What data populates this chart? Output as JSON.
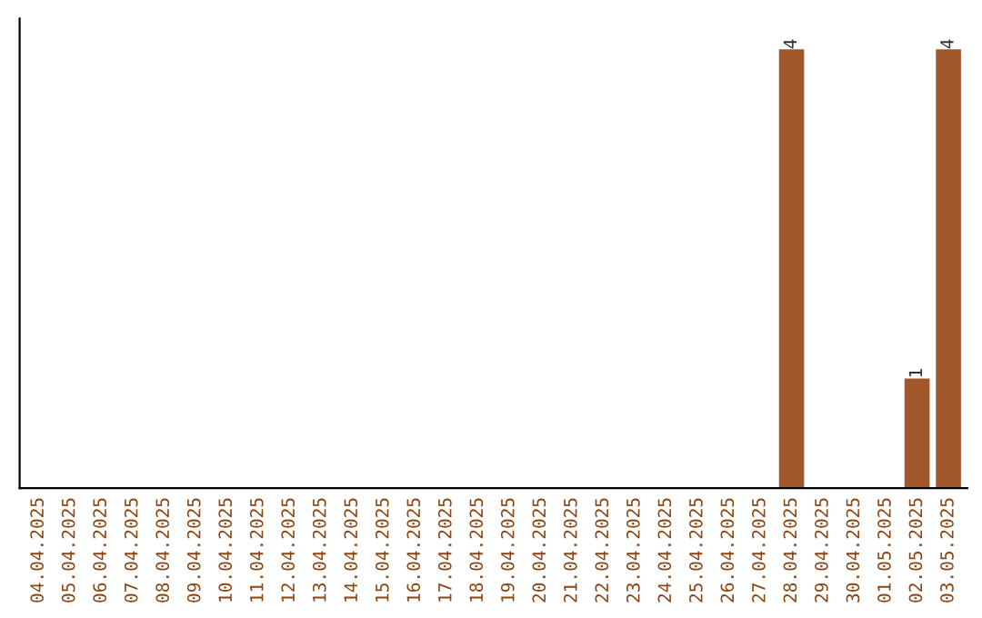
{
  "chart_data": {
    "type": "bar",
    "categories": [
      "04.04.2025",
      "05.04.2025",
      "06.04.2025",
      "07.04.2025",
      "08.04.2025",
      "09.04.2025",
      "10.04.2025",
      "11.04.2025",
      "12.04.2025",
      "13.04.2025",
      "14.04.2025",
      "15.04.2025",
      "16.04.2025",
      "17.04.2025",
      "18.04.2025",
      "19.04.2025",
      "20.04.2025",
      "21.04.2025",
      "22.04.2025",
      "23.04.2025",
      "24.04.2025",
      "25.04.2025",
      "26.04.2025",
      "27.04.2025",
      "28.04.2025",
      "29.04.2025",
      "30.04.2025",
      "01.05.2025",
      "02.05.2025",
      "03.05.2025"
    ],
    "values": [
      null,
      null,
      null,
      null,
      null,
      null,
      null,
      null,
      null,
      null,
      null,
      null,
      null,
      null,
      null,
      null,
      null,
      null,
      null,
      null,
      null,
      null,
      null,
      null,
      4,
      null,
      null,
      null,
      1,
      4
    ],
    "value_labels": [
      null,
      null,
      null,
      null,
      null,
      null,
      null,
      null,
      null,
      null,
      null,
      null,
      null,
      null,
      null,
      null,
      null,
      null,
      null,
      null,
      null,
      null,
      null,
      null,
      "4",
      null,
      null,
      null,
      "1",
      "4"
    ],
    "color": "#a0582a",
    "tick_labels": "x",
    "grid": false
  }
}
